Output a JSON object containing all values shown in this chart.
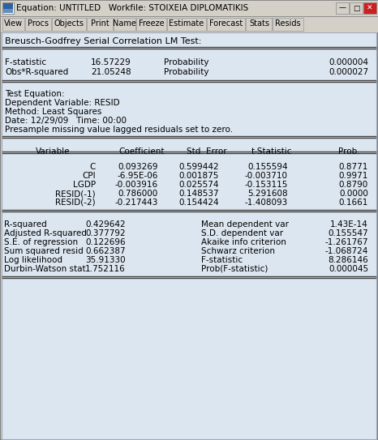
{
  "title_bar": "Equation: UNTITLED   Workfile: STOIXEIA DIPLOMATIKIS",
  "menu_items": [
    "View",
    "Procs",
    "Objects",
    "Print",
    "Name",
    "Freeze",
    "Estimate",
    "Forecast",
    "Stats",
    "Resids"
  ],
  "section_title": "Breusch-Godfrey Serial Correlation LM Test:",
  "lm_test": [
    {
      "label": "F-statistic",
      "value": "16.57229",
      "label2": "Probability",
      "value2": "0.000004"
    },
    {
      "label": "Obs*R-squared",
      "value": "21.05248",
      "label2": "Probability",
      "value2": "0.000027"
    }
  ],
  "info_lines": [
    "Test Equation:",
    "Dependent Variable: RESID",
    "Method: Least Squares",
    "Date: 12/29/09   Time: 00:00",
    "Presample missing value lagged residuals set to zero."
  ],
  "col_headers": [
    "Variable",
    "Coefficient",
    "Std. Error",
    "t-Statistic",
    "Prob."
  ],
  "table_rows": [
    [
      "C",
      "0.093269",
      "0.599442",
      "0.155594",
      "0.8771"
    ],
    [
      "CPI",
      "-6.95E-06",
      "0.001875",
      "-0.003710",
      "0.9971"
    ],
    [
      "LGDP",
      "-0.003916",
      "0.025574",
      "-0.153115",
      "0.8790"
    ],
    [
      "RESID(-1)",
      "0.786000",
      "0.148537",
      "5.291608",
      "0.0000"
    ],
    [
      "RESID(-2)",
      "-0.217443",
      "0.154424",
      "-1.408093",
      "0.1661"
    ]
  ],
  "stats_rows": [
    [
      "R-squared",
      "0.429642",
      "Mean dependent var",
      "1.43E-14"
    ],
    [
      "Adjusted R-squared",
      "0.377792",
      "S.D. dependent var",
      "0.155547"
    ],
    [
      "S.E. of regression",
      "0.122696",
      "Akaike info criterion",
      "-1.261767"
    ],
    [
      "Sum squared resid",
      "0.662387",
      "Schwarz criterion",
      "-1.068724"
    ],
    [
      "Log likelihood",
      "35.91330",
      "F-statistic",
      "8.286146"
    ],
    [
      "Durbin-Watson stat",
      "1.752116",
      "Prob(F-statistic)",
      "0.000045"
    ]
  ],
  "bg_color": "#d4d0c8",
  "content_bg": "#dce6f0",
  "titlebar_bg": "#d4d0c8",
  "font_size": 7.5
}
